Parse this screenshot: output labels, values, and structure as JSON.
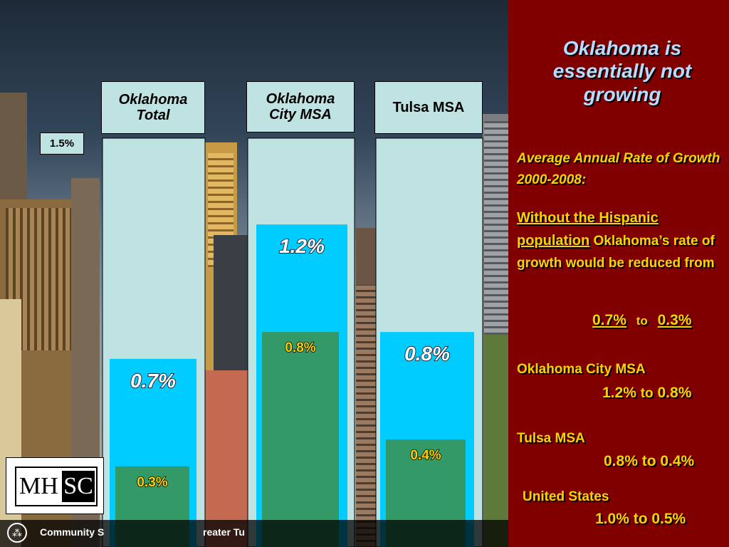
{
  "panel": {
    "title": "Oklahoma is essentially not growing",
    "subtitle": "Average Annual Rate of Growth 2000-2008:",
    "without_underlined": "Without  the Hispanic population",
    "without_rest": "Oklahoma’s rate of growth would be reduced from",
    "ok_from": "0.7%",
    "ok_to_word": "to",
    "ok_to": "0.3%",
    "okc_label": "Oklahoma City MSA",
    "okc_from": "1.2%",
    "okc_to_word": "to",
    "okc_to": "0.8%",
    "tulsa_label": "Tulsa MSA",
    "tulsa_value": "0.8% to 0.4%",
    "us_label": "United States",
    "us_value": "1.0% to 0.5%"
  },
  "footer": {
    "text_left": "Community S",
    "text_right": "reater Tu"
  },
  "logo": {
    "left": "MH",
    "right": "SC"
  },
  "colors": {
    "panel_bg": "#800000",
    "panel_text": "#ffd200",
    "title_text": "#b7dcff",
    "total_bar": "#00ccff",
    "non_hispanic_bar": "#339966",
    "frame": "#bfe2e2"
  },
  "chart_data": {
    "type": "bar",
    "categories": [
      "Oklahoma Total",
      "Oklahoma City MSA",
      "Tulsa MSA"
    ],
    "category_lines": [
      [
        "Oklahoma",
        "Total"
      ],
      [
        "Oklahoma",
        "City MSA"
      ],
      [
        "Tulsa MSA"
      ]
    ],
    "series": [
      {
        "values": [
          0.7,
          1.2,
          0.8
        ],
        "labels": [
          "0.7%",
          "1.2%",
          "0.8%"
        ]
      },
      {
        "values": [
          0.3,
          0.8,
          0.4
        ],
        "labels": [
          "0.3%",
          "0.8%",
          "0.4%"
        ]
      }
    ],
    "ytick_label": "1.5%",
    "ylim": [
      0,
      1.5
    ]
  }
}
